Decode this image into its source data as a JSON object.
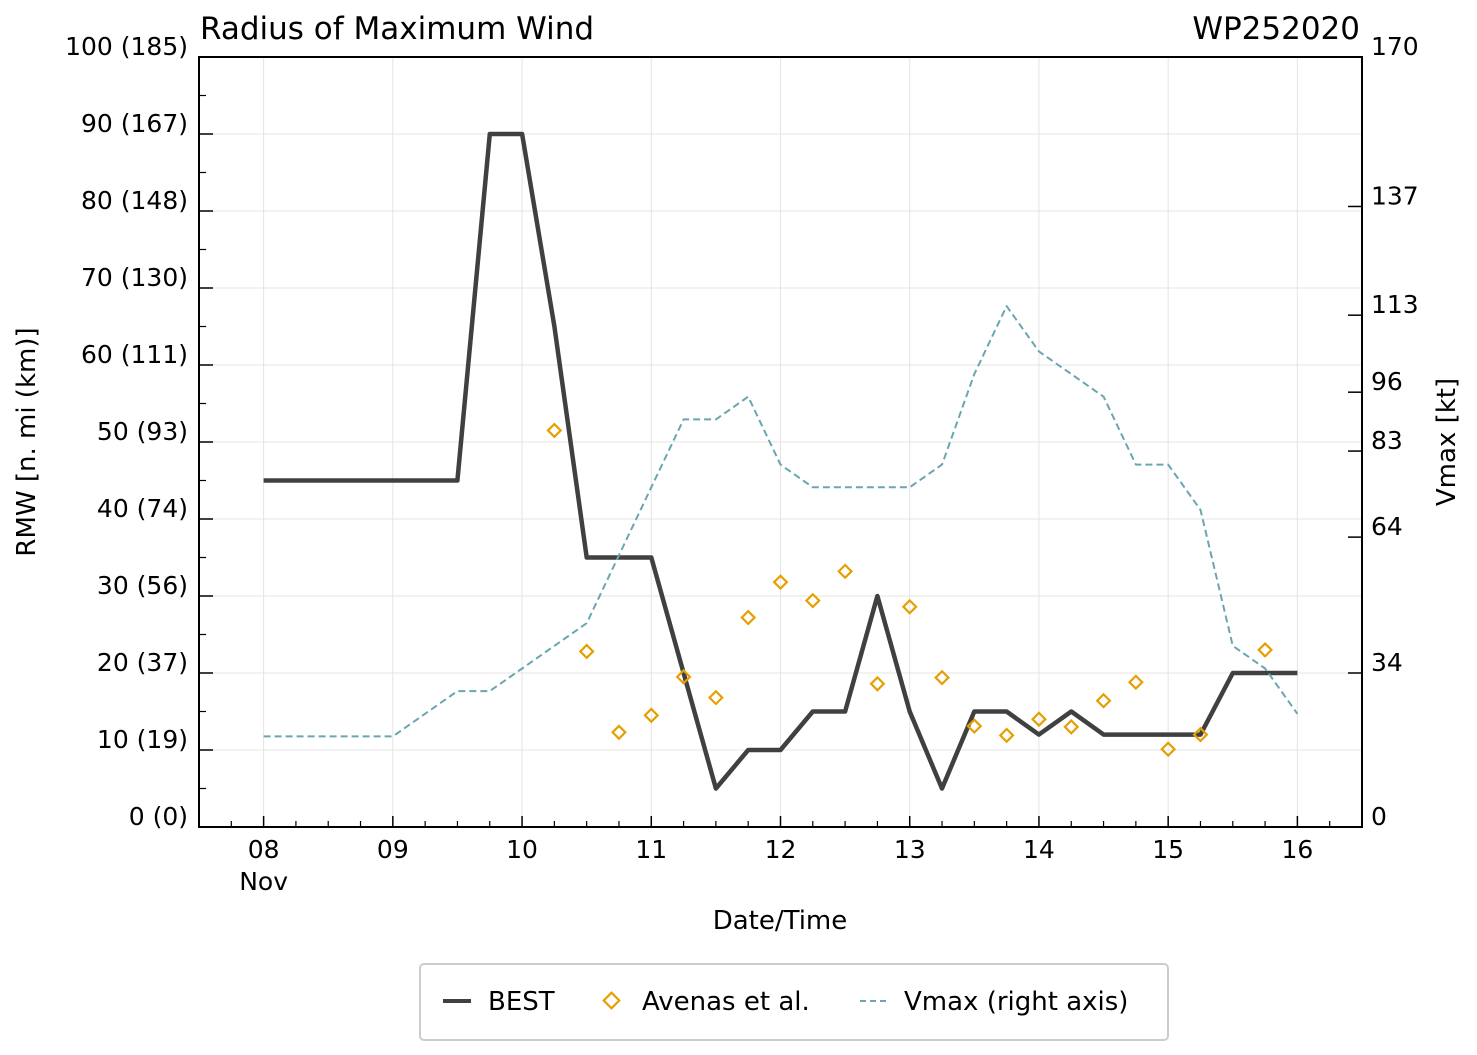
{
  "chart_data": {
    "type": "line",
    "title": "Radius of Maximum Wind",
    "storm_id": "WP252020",
    "xlabel": "Date/Time",
    "ylabel": "RMW [n. mi (km)]",
    "y2label": "Vmax [kt]",
    "xlim": [
      7.5,
      16.5
    ],
    "ylim": [
      0,
      100
    ],
    "y2lim": [
      0,
      170
    ],
    "grid": true,
    "x_ticks": [
      {
        "value": 8,
        "label": "08",
        "sublabel": "Nov"
      },
      {
        "value": 9,
        "label": "09",
        "sublabel": ""
      },
      {
        "value": 10,
        "label": "10",
        "sublabel": ""
      },
      {
        "value": 11,
        "label": "11",
        "sublabel": ""
      },
      {
        "value": 12,
        "label": "12",
        "sublabel": ""
      },
      {
        "value": 13,
        "label": "13",
        "sublabel": ""
      },
      {
        "value": 14,
        "label": "14",
        "sublabel": ""
      },
      {
        "value": 15,
        "label": "15",
        "sublabel": ""
      },
      {
        "value": 16,
        "label": "16",
        "sublabel": ""
      }
    ],
    "y_ticks": [
      {
        "value": 0,
        "label": "0 (0)"
      },
      {
        "value": 10,
        "label": "10 (19)"
      },
      {
        "value": 20,
        "label": "20 (37)"
      },
      {
        "value": 30,
        "label": "30 (56)"
      },
      {
        "value": 40,
        "label": "40 (74)"
      },
      {
        "value": 50,
        "label": "50 (93)"
      },
      {
        "value": 60,
        "label": "60 (111)"
      },
      {
        "value": 70,
        "label": "70 (130)"
      },
      {
        "value": 80,
        "label": "80 (148)"
      },
      {
        "value": 90,
        "label": "90 (167)"
      },
      {
        "value": 100,
        "label": "100 (185)"
      }
    ],
    "y2_ticks": [
      {
        "value": 0,
        "label": "0"
      },
      {
        "value": 34,
        "label": "34"
      },
      {
        "value": 64,
        "label": "64"
      },
      {
        "value": 83,
        "label": "83"
      },
      {
        "value": 96,
        "label": "96"
      },
      {
        "value": 113,
        "label": "113"
      },
      {
        "value": 137,
        "label": "137"
      },
      {
        "value": 170,
        "label": "170"
      }
    ],
    "series": [
      {
        "name": "BEST",
        "kind": "line",
        "axis": "left",
        "color": "#404040",
        "x": [
          8.0,
          9.5,
          9.75,
          10.0,
          10.25,
          10.5,
          11.0,
          11.5,
          11.75,
          12.0,
          12.25,
          12.5,
          12.75,
          13.0,
          13.25,
          13.5,
          13.75,
          14.0,
          14.25,
          14.5,
          15.0,
          15.25,
          15.5,
          16.0
        ],
        "y": [
          45,
          45,
          90,
          90,
          65,
          35,
          35,
          5,
          10,
          10,
          15,
          15,
          30,
          15,
          5,
          15,
          15,
          12,
          15,
          12,
          12,
          12,
          20,
          20
        ]
      },
      {
        "name": "Avenas et al.",
        "kind": "scatter",
        "axis": "left",
        "color": "#E69F00",
        "x": [
          10.25,
          10.5,
          10.75,
          11.0,
          11.25,
          11.5,
          11.75,
          12.0,
          12.25,
          12.5,
          12.75,
          13.0,
          13.25,
          13.5,
          13.75,
          14.0,
          14.25,
          14.5,
          14.75,
          15.0,
          15.25,
          15.75
        ],
        "y": [
          51.5,
          22.8,
          12.3,
          14.5,
          19.5,
          16.8,
          27.2,
          31.8,
          29.4,
          33.2,
          18.6,
          28.6,
          19.4,
          13.1,
          11.9,
          14.0,
          13.0,
          16.4,
          18.8,
          10.1,
          12.0,
          23.0
        ]
      },
      {
        "name": "Vmax (right axis)",
        "kind": "line",
        "axis": "right",
        "dashed": true,
        "color": "#6AA6B0",
        "x": [
          8.0,
          9.0,
          9.5,
          9.75,
          10.0,
          10.5,
          10.75,
          11.0,
          11.25,
          11.5,
          11.75,
          12.0,
          12.25,
          12.5,
          12.75,
          13.0,
          13.25,
          13.5,
          13.75,
          14.0,
          14.5,
          14.75,
          15.0,
          15.25,
          15.5,
          15.75,
          16.0
        ],
        "y": [
          20,
          20,
          30,
          30,
          35,
          45,
          60,
          75,
          90,
          90,
          95,
          80,
          75,
          75,
          75,
          75,
          80,
          100,
          115,
          105,
          95,
          80,
          80,
          70,
          40,
          35,
          25
        ]
      }
    ],
    "legend": {
      "placement": "bottom-center",
      "entries": [
        "BEST",
        "Avenas et al.",
        "Vmax (right axis)"
      ]
    }
  }
}
